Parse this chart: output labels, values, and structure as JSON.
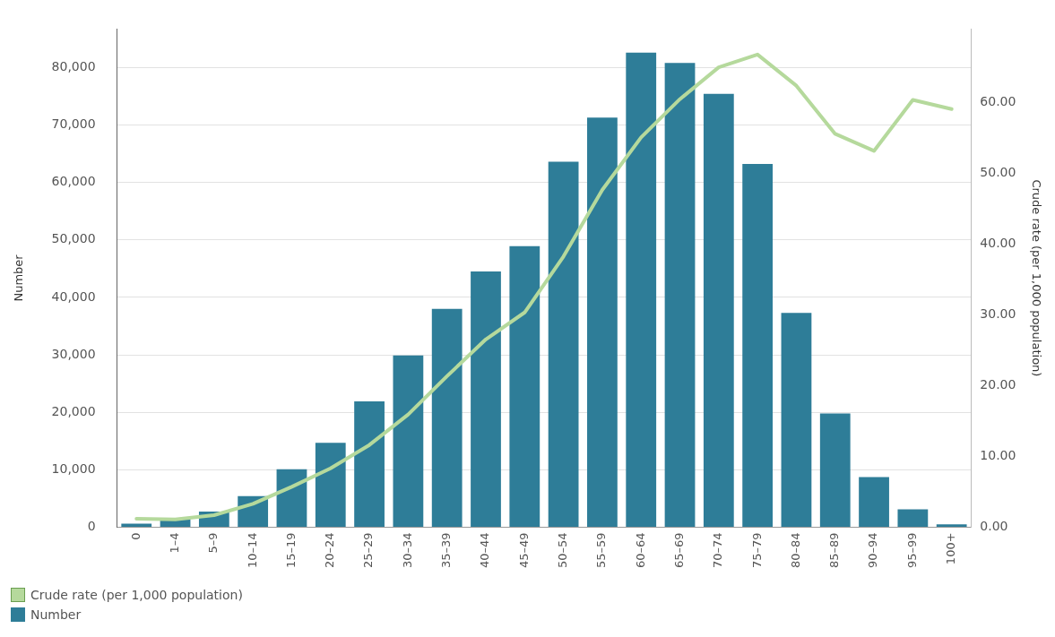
{
  "chart_data": {
    "type": "bar",
    "ylabel": "Number",
    "y2label": "Crude rate (per 1,000 population)",
    "categories": [
      "0",
      "1–4",
      "5–9",
      "10–14",
      "15–19",
      "20–24",
      "25–29",
      "30–34",
      "35–39",
      "40–44",
      "45–49",
      "50–54",
      "55–59",
      "60–64",
      "65–69",
      "70–74",
      "75–79",
      "80–84",
      "85–89",
      "90–94",
      "95–99",
      "100+"
    ],
    "series": [
      {
        "name": "Crude rate (per 1,000 population)",
        "type": "line",
        "axis": "y2",
        "color": "#b5d99c",
        "values": [
          1.2,
          1.1,
          1.7,
          3.3,
          5.7,
          8.3,
          11.6,
          15.9,
          21.3,
          26.5,
          30.3,
          38.2,
          47.6,
          55.0,
          60.4,
          64.9,
          66.7,
          62.3,
          55.5,
          53.1,
          60.3,
          59.0
        ]
      },
      {
        "name": "Number",
        "color": "#2e7d98",
        "values": [
          600,
          1500,
          2700,
          5400,
          10100,
          14700,
          21900,
          29900,
          38000,
          44500,
          48900,
          63600,
          71300,
          82600,
          80800,
          75400,
          63200,
          37300,
          19800,
          8700,
          3100,
          500
        ]
      }
    ],
    "ylim": [
      0,
      86700
    ],
    "yticks": [
      {
        "value": 0,
        "label": "0"
      },
      {
        "value": 10000,
        "label": "10,000"
      },
      {
        "value": 20000,
        "label": "20,000"
      },
      {
        "value": 30000,
        "label": "30,000"
      },
      {
        "value": 40000,
        "label": "40,000"
      },
      {
        "value": 50000,
        "label": "50,000"
      },
      {
        "value": 60000,
        "label": "60,000"
      },
      {
        "value": 70000,
        "label": "70,000"
      },
      {
        "value": 80000,
        "label": "80,000"
      }
    ],
    "y2lim": [
      0,
      70.3
    ],
    "y2ticks": [
      {
        "value": 0,
        "label": "0.00"
      },
      {
        "value": 10,
        "label": "10.00"
      },
      {
        "value": 20,
        "label": "20.00"
      },
      {
        "value": 30,
        "label": "30.00"
      },
      {
        "value": 40,
        "label": "40.00"
      },
      {
        "value": 50,
        "label": "50.00"
      },
      {
        "value": 60,
        "label": "60.00"
      }
    ],
    "grid": "y",
    "legend": "bottom left",
    "marker": "none",
    "line_style": "solid"
  }
}
